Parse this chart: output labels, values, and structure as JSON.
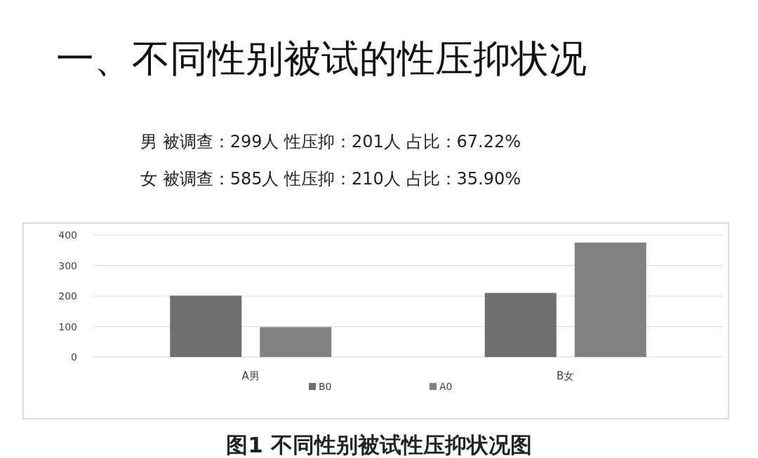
{
  "chart_data": {
    "type": "bar",
    "title": "一、不同性别被试的性压抑状况",
    "annotations": [
      "男 被调查：299人   性压抑：201人   占比：67.22%",
      "女 被调查：585人   性压抑：210人   占比：35.90%",
      "图1 不同性别被试性压抑状况图"
    ],
    "categories": [
      "A男",
      "B女"
    ],
    "series": [
      {
        "name": "B0",
        "color": "#6f6f6f",
        "values": [
          201,
          210
        ]
      },
      {
        "name": "A0",
        "color": "#818181",
        "values": [
          98,
          375
        ]
      }
    ],
    "ylim": [
      0,
      400
    ],
    "yticks": [
      0,
      100,
      200,
      300,
      400
    ],
    "grid": "y",
    "legend": "bottom"
  }
}
